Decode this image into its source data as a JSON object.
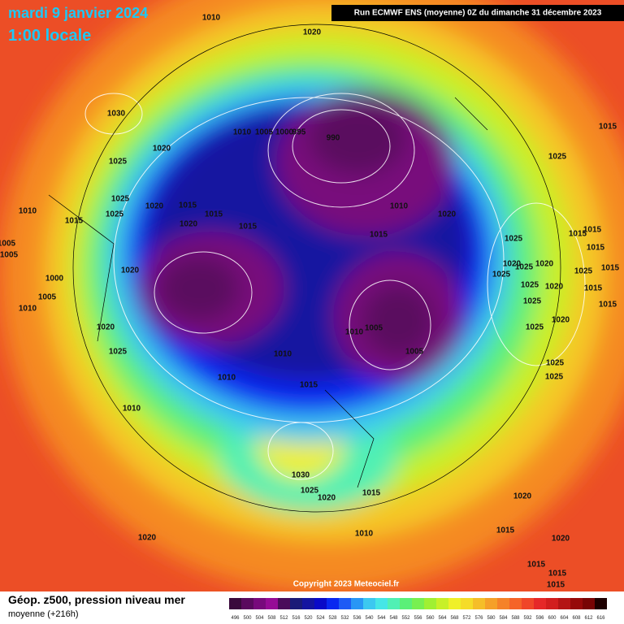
{
  "header": {
    "date": "mardi 9 janvier 2024",
    "time": "1:00 locale",
    "run": "Run ECMWF ENS (moyenne) 0Z du dimanche 31 décembre 2023"
  },
  "copyright": "Copyright 2023 Meteociel.fr",
  "footer": {
    "title": "Géop. z500, pression niveau mer",
    "subtitle": "moyenne  (+216h)"
  },
  "scale": {
    "labels": [
      496,
      500,
      504,
      508,
      512,
      516,
      520,
      524,
      528,
      532,
      536,
      540,
      544,
      548,
      552,
      556,
      560,
      564,
      568,
      572,
      576,
      580,
      584,
      588,
      592,
      596,
      600,
      604,
      608,
      612,
      616
    ],
    "colors": [
      "#3a0a3c",
      "#5a0a5e",
      "#780a7c",
      "#960c96",
      "#4a0c5a",
      "#1a1a78",
      "#1414a0",
      "#0a0ac8",
      "#0a28f0",
      "#1e5af5",
      "#2896f5",
      "#3cc8f0",
      "#46e6e6",
      "#50f0b4",
      "#5af078",
      "#78f050",
      "#a0f032",
      "#c8f028",
      "#f0f028",
      "#f5dc28",
      "#f5be28",
      "#f5a028",
      "#f58228",
      "#f56428",
      "#f04628",
      "#e62828",
      "#d21e1e",
      "#b41414",
      "#960a0a",
      "#780505",
      "#1e0000"
    ]
  },
  "isobar_labels": [
    1010,
    1020,
    1030,
    1020,
    1025,
    1010,
    1005,
    1000,
    995,
    990,
    1025,
    1025,
    1020,
    1015,
    1015,
    1020,
    1015,
    1015,
    1010,
    1005,
    1005,
    1000,
    1005,
    1010,
    1020,
    1020,
    1025,
    1010,
    1010,
    1010,
    1015,
    1010,
    1005,
    1005,
    1010,
    1015,
    1020,
    1015,
    1025,
    1025,
    1020,
    1025,
    1020,
    1025,
    1025,
    1020,
    1025,
    1025,
    1020,
    1025,
    1015,
    1015,
    1015,
    1015,
    1015,
    1015,
    1025,
    1025,
    1030,
    1025,
    1020,
    1015,
    1020,
    1015,
    1020,
    1010,
    1020,
    1015,
    1015,
    1015
  ]
}
